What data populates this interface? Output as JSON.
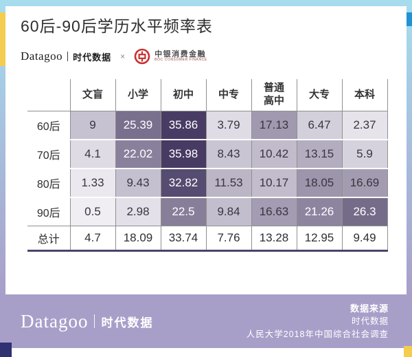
{
  "frame": {
    "border_cyan": "#a6dcee",
    "border_lavender": "#a89fc9",
    "accent_yellow": "#f3cd4f",
    "accent_blue": "#1f93d2",
    "accent_navy": "#2f3173"
  },
  "header": {
    "title": "60后-90后学历水平频率表",
    "brand": "Datagoo",
    "brand_cn": "时代数据",
    "times_symbol": "×",
    "partner_name": "中银消费金融",
    "partner_sub": "BOC CONSUMER FINANCE",
    "partner_logo_color": "#c9302f"
  },
  "chart_data": {
    "type": "table",
    "title": "60后-90后学历水平频率表",
    "columns": [
      "文盲",
      "小学",
      "初中",
      "中专",
      "普通高中",
      "大专",
      "本科"
    ],
    "rows": [
      {
        "label": "60后",
        "values": [
          9,
          25.39,
          35.86,
          3.79,
          17.13,
          6.47,
          2.37
        ]
      },
      {
        "label": "70后",
        "values": [
          4.1,
          22.02,
          35.98,
          8.43,
          10.42,
          13.15,
          5.9
        ]
      },
      {
        "label": "80后",
        "values": [
          1.33,
          9.43,
          32.82,
          11.53,
          10.17,
          18.05,
          16.69
        ]
      },
      {
        "label": "90后",
        "values": [
          0.5,
          2.98,
          22.5,
          9.84,
          16.63,
          21.26,
          26.3
        ]
      },
      {
        "label": "总计",
        "values": [
          4.7,
          18.09,
          33.74,
          7.76,
          13.28,
          12.95,
          9.49
        ],
        "is_total": true
      }
    ],
    "heatmap_scale": {
      "min_color": "#f2eff5",
      "max_color": "#473b63",
      "max_value": 36,
      "white_text_threshold": 20,
      "dark_text_color": "#3a3540",
      "light_text_color": "#ffffff"
    },
    "grid_color": "#8f8f8f",
    "total_border_color": "#4a4469"
  },
  "footer": {
    "brand": "Datagoo",
    "brand_cn": "时代数据",
    "source_label": "数据来源",
    "source_line1": "时代数据",
    "source_line2": "人民大学2018年中国综合社会调查"
  }
}
